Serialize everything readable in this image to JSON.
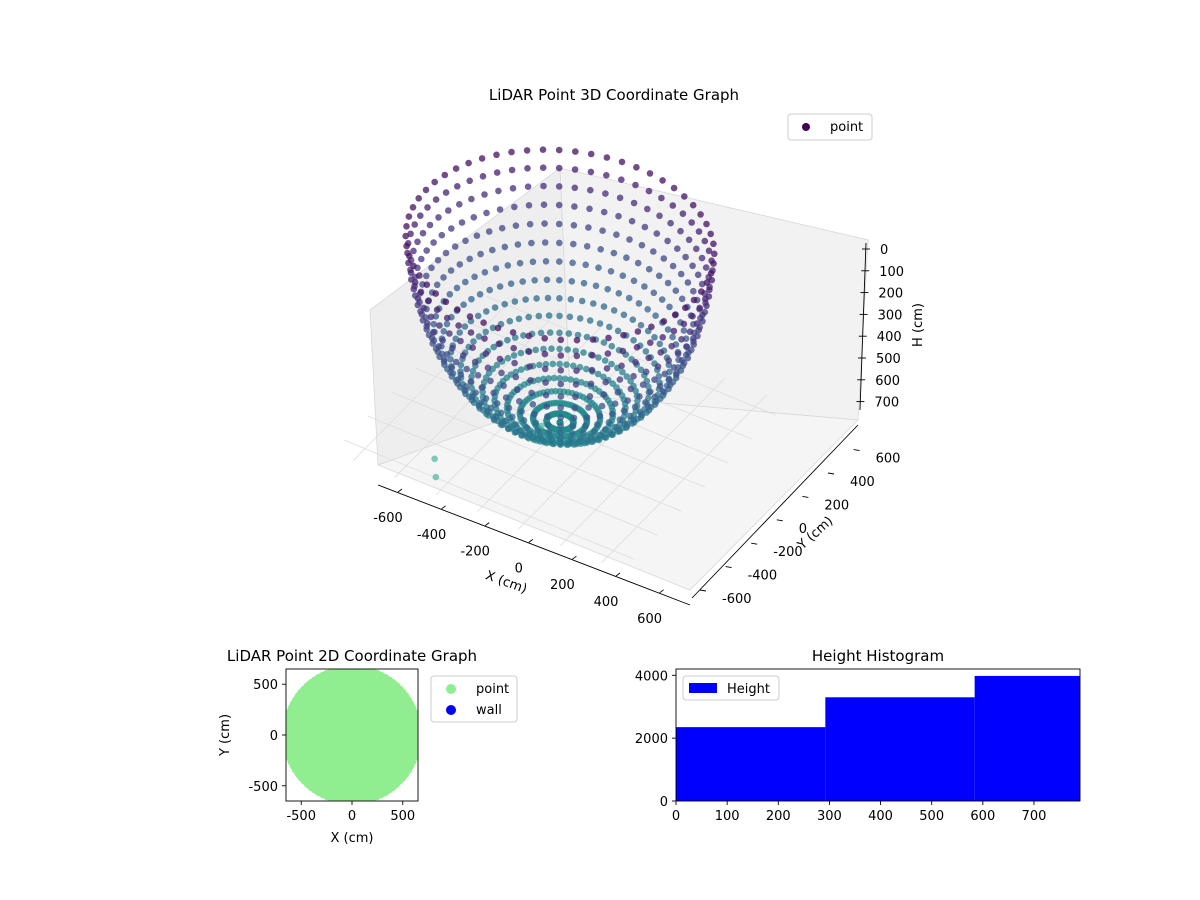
{
  "chart_data": [
    {
      "type": "scatter3d",
      "title": "LiDAR Point 3D Coordinate Graph",
      "xlabel": "X (cm)",
      "ylabel": "Y (cm)",
      "zlabel": "H (cm)",
      "xlim": [
        -700,
        700
      ],
      "ylim": [
        -700,
        700
      ],
      "zlim": [
        0,
        780
      ],
      "z_inverted": true,
      "x_ticks": [
        "-600",
        "-400",
        "-200",
        "0",
        "200",
        "400",
        "600"
      ],
      "y_ticks": [
        "-600",
        "-400",
        "-200",
        "0",
        "200",
        "400",
        "600"
      ],
      "z_ticks": [
        "0",
        "100",
        "200",
        "300",
        "400",
        "500",
        "600",
        "700"
      ],
      "legend": {
        "position": "top-right",
        "entries": [
          {
            "label": "point",
            "color": "#440154"
          }
        ]
      },
      "colormap": "viridis",
      "shape": "hemispherical bowl of radius ~650 cm, depth ~780 cm",
      "grid": true
    },
    {
      "type": "scatter",
      "title": "LiDAR Point 2D Coordinate Graph",
      "xlabel": "X (cm)",
      "ylabel": "Y (cm)",
      "xlim": [
        -650,
        650
      ],
      "ylim": [
        -650,
        650
      ],
      "x_ticks": [
        "-500",
        "0",
        "500"
      ],
      "y_ticks": [
        "-500",
        "0",
        "500"
      ],
      "legend": {
        "position": "outside-right",
        "entries": [
          {
            "label": "point",
            "color": "#90ee90"
          },
          {
            "label": "wall",
            "color": "#0000ff"
          }
        ]
      },
      "series": [
        {
          "name": "point",
          "color": "#90ee90",
          "shape": "filled disk of radius ~650 cm"
        }
      ]
    },
    {
      "type": "bar",
      "title": "Height Histogram",
      "xlim": [
        0,
        790
      ],
      "ylim": [
        0,
        4200
      ],
      "x_ticks": [
        "0",
        "100",
        "200",
        "300",
        "400",
        "500",
        "600",
        "700"
      ],
      "y_ticks": [
        "0",
        "2000",
        "4000"
      ],
      "legend": {
        "position": "top-left",
        "entries": [
          {
            "label": "Height",
            "color": "#0000ff"
          }
        ]
      },
      "bins": [
        {
          "start": 0,
          "end": 292,
          "count": 2350
        },
        {
          "start": 292,
          "end": 584,
          "count": 3300
        },
        {
          "start": 584,
          "end": 790,
          "count": 3980
        }
      ],
      "color": "#0000ff"
    }
  ]
}
